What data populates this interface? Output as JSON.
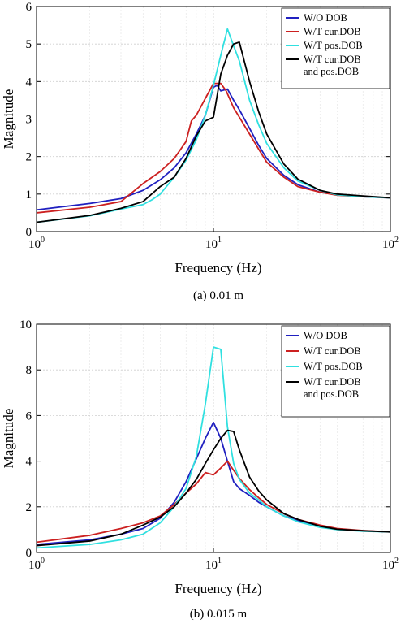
{
  "chart_data": [
    {
      "type": "line",
      "caption": "(a) 0.01 m",
      "xlabel": "Frequency (Hz)",
      "ylabel": "Magnitude",
      "xscale": "log",
      "xlim": [
        1,
        100
      ],
      "ylim": [
        0,
        6
      ],
      "x_tick_labels": [
        {
          "base": "10",
          "exp": "0"
        },
        {
          "base": "10",
          "exp": "1"
        },
        {
          "base": "10",
          "exp": "2"
        }
      ],
      "y_ticks": [
        0,
        1,
        2,
        3,
        4,
        5,
        6
      ],
      "grid": true,
      "legend_position": "top-right",
      "series": [
        {
          "name": "W/O DOB",
          "color": "#2020c0",
          "x": [
            1,
            2,
            3,
            4,
            5,
            6,
            7,
            8,
            9,
            10,
            10.5,
            11,
            12,
            13,
            14,
            16,
            18,
            20,
            25,
            30,
            40,
            50,
            70,
            100
          ],
          "y": [
            0.58,
            0.75,
            0.88,
            1.1,
            1.38,
            1.7,
            2.1,
            2.6,
            3.1,
            3.85,
            3.9,
            3.75,
            3.8,
            3.5,
            3.25,
            2.75,
            2.3,
            1.95,
            1.5,
            1.25,
            1.05,
            0.98,
            0.93,
            0.9
          ]
        },
        {
          "name": "W/T cur.DOB",
          "color": "#cc2020",
          "x": [
            1,
            2,
            3,
            4,
            5,
            6,
            7,
            7.5,
            8,
            9,
            10,
            11,
            11.8,
            13,
            14,
            16,
            18,
            20,
            25,
            30,
            40,
            50,
            70,
            100
          ],
          "y": [
            0.5,
            0.65,
            0.8,
            1.28,
            1.6,
            1.95,
            2.4,
            2.95,
            3.1,
            3.55,
            3.95,
            3.95,
            3.75,
            3.3,
            3.05,
            2.6,
            2.2,
            1.85,
            1.45,
            1.2,
            1.05,
            0.97,
            0.93,
            0.9
          ]
        },
        {
          "name": "W/T pos.DOB",
          "color": "#30e0e0",
          "x": [
            1,
            2,
            3,
            4,
            4.5,
            5,
            6,
            7,
            8,
            9,
            10,
            11,
            12,
            13,
            14,
            16,
            18,
            20,
            25,
            30,
            40,
            50,
            70,
            100
          ],
          "y": [
            0.25,
            0.42,
            0.6,
            0.72,
            0.85,
            1.0,
            1.45,
            1.9,
            2.45,
            3.1,
            3.9,
            4.7,
            5.4,
            4.95,
            4.55,
            3.5,
            2.85,
            2.35,
            1.7,
            1.35,
            1.1,
            0.98,
            0.93,
            0.9
          ]
        },
        {
          "name": "W/T cur.DOB\nand pos.DOB",
          "color": "#000000",
          "x": [
            1,
            2,
            3,
            4,
            5,
            6,
            7,
            8,
            9,
            10,
            11,
            12,
            13,
            14,
            16,
            18,
            20,
            25,
            30,
            40,
            50,
            70,
            100
          ],
          "y": [
            0.25,
            0.43,
            0.62,
            0.8,
            1.2,
            1.45,
            1.95,
            2.55,
            2.95,
            3.05,
            4.2,
            4.7,
            5.0,
            5.05,
            4.0,
            3.2,
            2.6,
            1.8,
            1.4,
            1.1,
            1.0,
            0.95,
            0.9
          ]
        }
      ]
    },
    {
      "type": "line",
      "caption": "(b) 0.015 m",
      "xlabel": "Frequency (Hz)",
      "ylabel": "Magnitude",
      "xscale": "log",
      "xlim": [
        1,
        100
      ],
      "ylim": [
        0,
        10
      ],
      "x_tick_labels": [
        {
          "base": "10",
          "exp": "0"
        },
        {
          "base": "10",
          "exp": "1"
        },
        {
          "base": "10",
          "exp": "2"
        }
      ],
      "y_ticks": [
        0,
        2,
        4,
        6,
        8,
        10
      ],
      "grid": true,
      "legend_position": "top-right",
      "series": [
        {
          "name": "W/O DOB",
          "color": "#2020c0",
          "x": [
            1,
            2,
            3,
            4,
            5,
            6,
            7,
            8,
            9,
            10,
            11,
            12,
            13,
            14,
            16,
            18,
            20,
            25,
            30,
            40,
            50,
            70,
            100
          ],
          "y": [
            0.35,
            0.55,
            0.8,
            1.05,
            1.5,
            2.2,
            3.1,
            4.1,
            5.0,
            5.7,
            5.0,
            4.0,
            3.1,
            2.8,
            2.5,
            2.2,
            2.0,
            1.6,
            1.4,
            1.15,
            1.02,
            0.95,
            0.9
          ]
        },
        {
          "name": "W/T cur.DOB",
          "color": "#cc2020",
          "x": [
            1,
            2,
            3,
            4,
            5,
            6,
            7,
            8,
            9,
            10,
            11,
            12,
            13,
            14,
            16,
            18,
            20,
            25,
            30,
            40,
            50,
            70,
            100
          ],
          "y": [
            0.45,
            0.75,
            1.05,
            1.3,
            1.6,
            2.1,
            2.6,
            3.0,
            3.5,
            3.4,
            3.7,
            4.0,
            3.6,
            3.25,
            2.75,
            2.4,
            2.1,
            1.7,
            1.45,
            1.2,
            1.05,
            0.96,
            0.9
          ]
        },
        {
          "name": "W/T pos.DOB",
          "color": "#30e0e0",
          "x": [
            1,
            2,
            3,
            4,
            5,
            6,
            7,
            8,
            9,
            10,
            11,
            12,
            13,
            14,
            16,
            18,
            20,
            25,
            30,
            40,
            50,
            70,
            100
          ],
          "y": [
            0.2,
            0.35,
            0.55,
            0.8,
            1.3,
            2.0,
            2.8,
            4.2,
            6.5,
            9.0,
            8.9,
            5.5,
            3.9,
            3.2,
            2.6,
            2.3,
            2.0,
            1.6,
            1.35,
            1.1,
            1.0,
            0.93,
            0.9
          ]
        },
        {
          "name": "W/T cur.DOB\nand pos.DOB",
          "color": "#000000",
          "x": [
            1,
            2,
            3,
            4,
            5,
            6,
            7,
            8,
            9,
            10,
            11,
            12,
            13,
            14,
            16,
            18,
            20,
            25,
            30,
            40,
            50,
            70,
            100
          ],
          "y": [
            0.3,
            0.5,
            0.8,
            1.2,
            1.55,
            2.0,
            2.6,
            3.2,
            3.9,
            4.5,
            5.0,
            5.35,
            5.3,
            4.5,
            3.3,
            2.7,
            2.3,
            1.7,
            1.45,
            1.15,
            1.02,
            0.95,
            0.9
          ]
        }
      ]
    }
  ]
}
